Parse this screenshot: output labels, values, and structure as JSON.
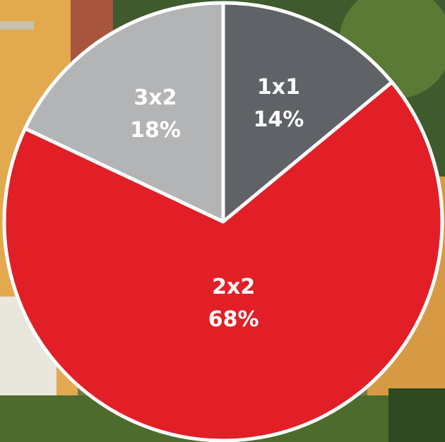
{
  "chart_data": {
    "type": "pie",
    "categories": [
      "1x1",
      "2x2",
      "3x2"
    ],
    "values": [
      14,
      68,
      18
    ],
    "value_labels": [
      "14%",
      "68%",
      "18%"
    ],
    "colors": [
      "#5f6266",
      "#e21f26",
      "#b3b4b6"
    ]
  }
}
